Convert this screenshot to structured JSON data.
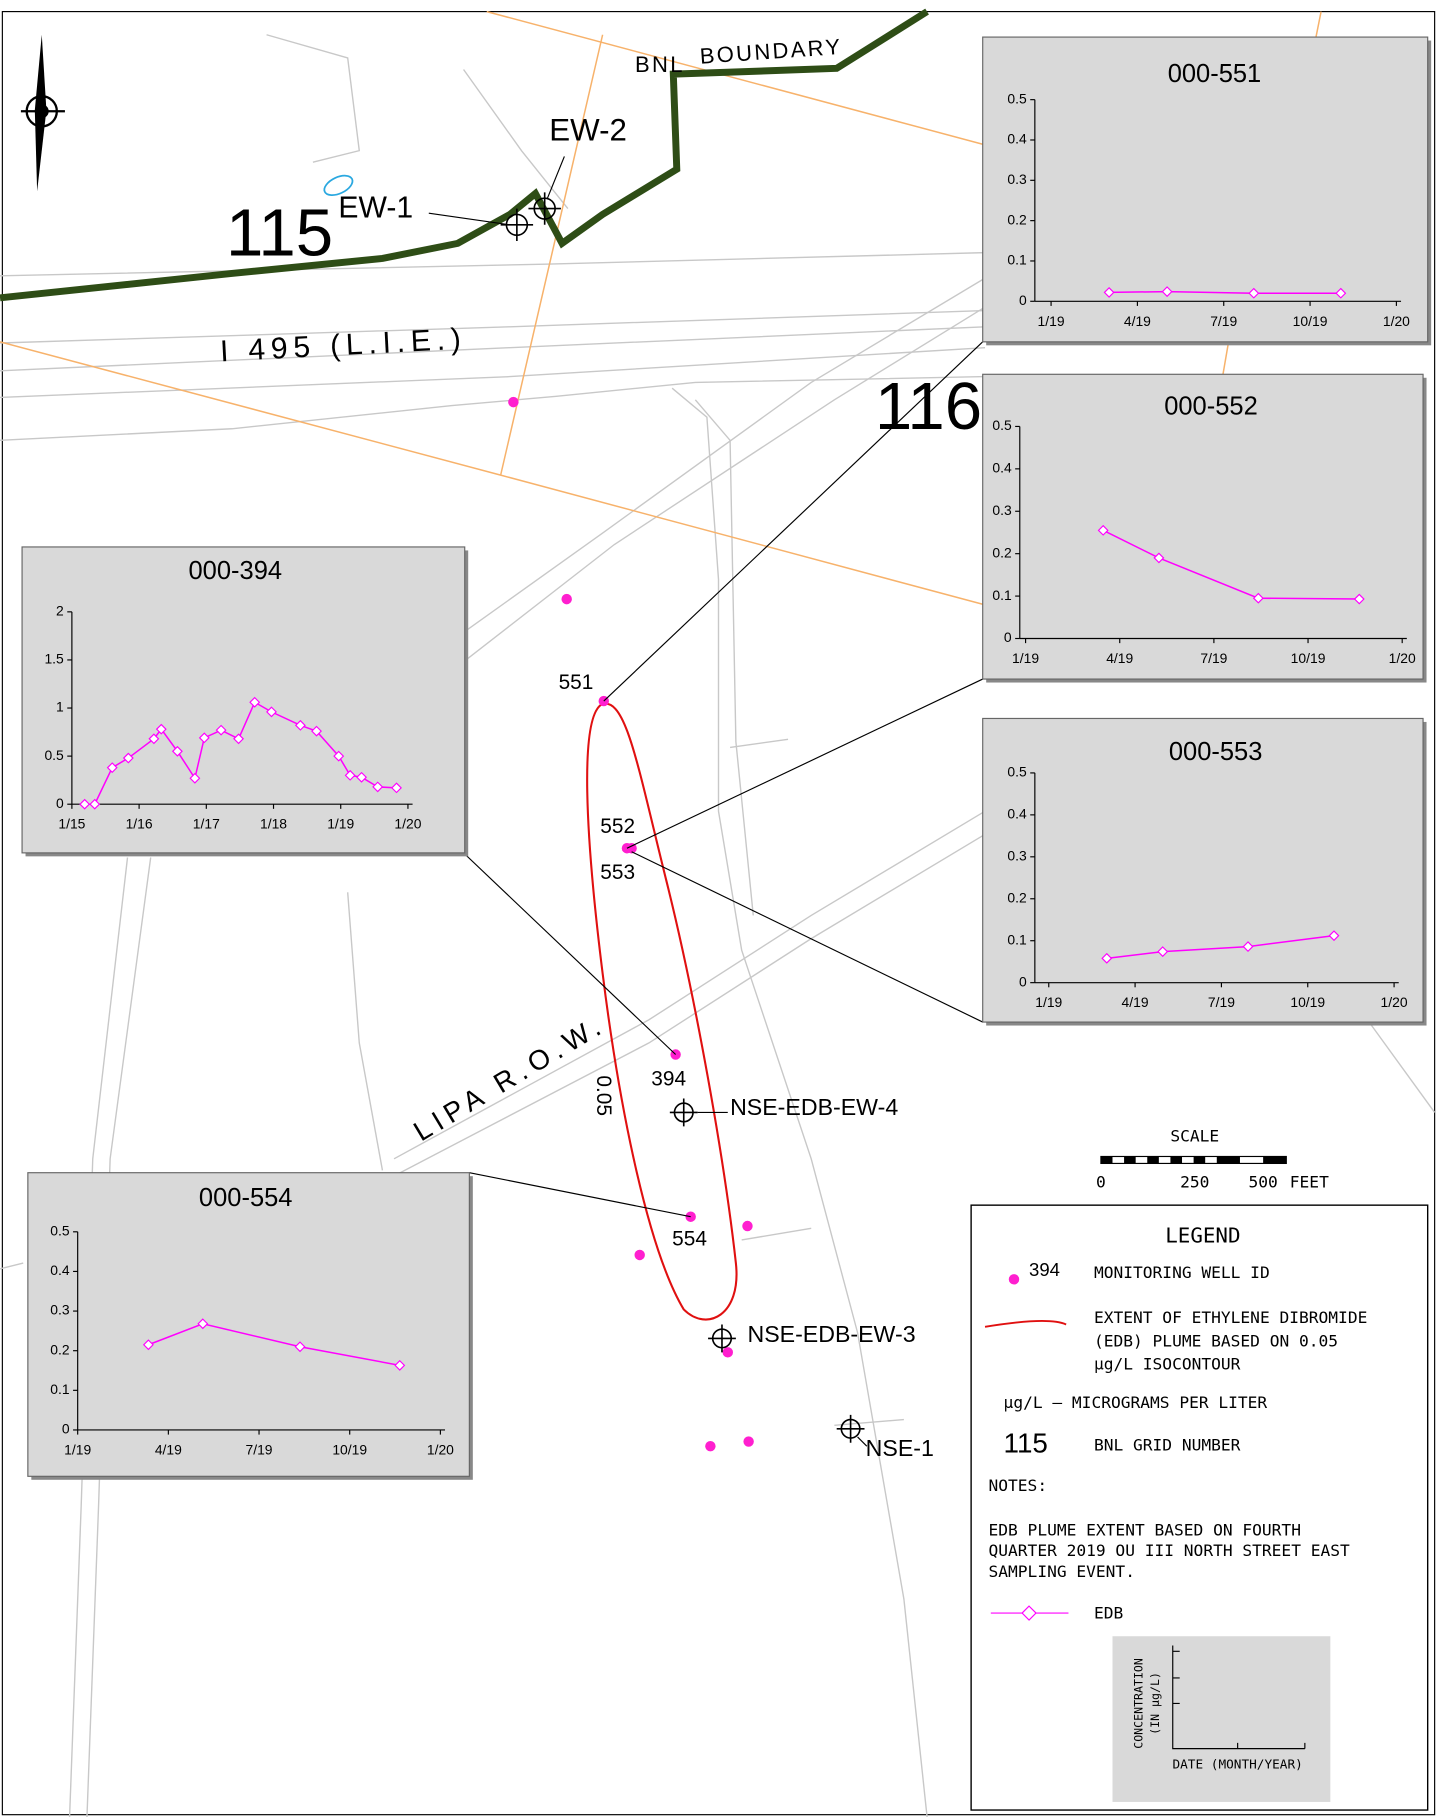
{
  "map": {
    "boundary": [
      "BNL",
      "BOUNDARY"
    ],
    "grid_numbers": [
      "115",
      "116"
    ],
    "roads": [
      "I 495 (L.I.E.)",
      "LIPA R.O.W."
    ],
    "contour_label": "0.05",
    "extraction_wells": [
      "EW-1",
      "EW-2",
      "NSE-EDB-EW-4",
      "NSE-EDB-EW-3",
      "NSE-1"
    ],
    "monitoring_wells": [
      "551",
      "552",
      "553",
      "394",
      "554"
    ],
    "scale": {
      "title": "SCALE",
      "labels": [
        "0",
        "250",
        "500"
      ],
      "unit": "FEET"
    }
  },
  "legend": {
    "title": "LEGEND",
    "well_sample": "394",
    "well_text": "MONITORING WELL ID",
    "plume_text": [
      "EXTENT OF ETHYLENE DIBROMIDE",
      "(EDB) PLUME BASED ON 0.05",
      "µg/L ISOCONTOUR"
    ],
    "unit_text": "µg/L — MICROGRAMS PER LITER",
    "grid_sample": "115",
    "grid_text": "BNL GRID NUMBER",
    "notes_title": "NOTES:",
    "notes": [
      "EDB PLUME EXTENT BASED ON FOURTH",
      "QUARTER 2019 OU III NORTH STREET EAST",
      "SAMPLING EVENT."
    ],
    "series_text": "EDB",
    "axis_y": [
      "CONCENTRATION",
      "(IN µg/L)"
    ],
    "axis_x": "DATE (MONTH/YEAR)"
  },
  "chart_data": [
    {
      "type": "line",
      "title": "000-551",
      "color": "#ff00ff",
      "x": [
        2019.168,
        2019.336,
        2019.587,
        2019.839
      ],
      "values": [
        0.022,
        0.024,
        0.02,
        0.02
      ],
      "xlim": [
        2019,
        2020
      ],
      "xticks": [
        {
          "value": 2019,
          "label": "1/19"
        },
        {
          "value": 2019.25,
          "label": "4/19"
        },
        {
          "value": 2019.5,
          "label": "7/19"
        },
        {
          "value": 2019.75,
          "label": "10/19"
        },
        {
          "value": 2020,
          "label": "1/20"
        }
      ],
      "ylim": [
        0,
        0.5
      ],
      "yticks": [
        0,
        0.1,
        0.2,
        0.3,
        0.4,
        0.5
      ]
    },
    {
      "type": "line",
      "title": "000-552",
      "color": "#ff00ff",
      "x": [
        2019.206,
        2019.354,
        2019.618,
        2019.886
      ],
      "values": [
        0.255,
        0.19,
        0.095,
        0.093
      ],
      "xlim": [
        2019,
        2020
      ],
      "xticks": [
        {
          "value": 2019,
          "label": "1/19"
        },
        {
          "value": 2019.25,
          "label": "4/19"
        },
        {
          "value": 2019.5,
          "label": "7/19"
        },
        {
          "value": 2019.75,
          "label": "10/19"
        },
        {
          "value": 2020,
          "label": "1/20"
        }
      ],
      "ylim": [
        0,
        0.5
      ],
      "yticks": [
        0,
        0.1,
        0.2,
        0.3,
        0.4,
        0.5
      ]
    },
    {
      "type": "line",
      "title": "000-553",
      "color": "#ff00ff",
      "x": [
        2019.168,
        2019.33,
        2019.577,
        2019.826
      ],
      "values": [
        0.058,
        0.074,
        0.086,
        0.112
      ],
      "xlim": [
        2019,
        2020
      ],
      "xticks": [
        {
          "value": 2019,
          "label": "1/19"
        },
        {
          "value": 2019.25,
          "label": "4/19"
        },
        {
          "value": 2019.5,
          "label": "7/19"
        },
        {
          "value": 2019.75,
          "label": "10/19"
        },
        {
          "value": 2020,
          "label": "1/20"
        }
      ],
      "ylim": [
        0,
        0.5
      ],
      "yticks": [
        0,
        0.1,
        0.2,
        0.3,
        0.4,
        0.5
      ]
    },
    {
      "type": "line",
      "title": "000-394",
      "color": "#ff00ff",
      "x": [
        2015.19,
        2015.34,
        2015.6,
        2015.84,
        2016.22,
        2016.33,
        2016.57,
        2016.83,
        2016.97,
        2017.22,
        2017.48,
        2017.72,
        2017.97,
        2018.4,
        2018.64,
        2018.97,
        2019.14,
        2019.31,
        2019.55,
        2019.83
      ],
      "values": [
        0,
        0,
        0.38,
        0.48,
        0.68,
        0.78,
        0.55,
        0.27,
        0.69,
        0.77,
        0.68,
        1.06,
        0.96,
        0.82,
        0.76,
        0.5,
        0.3,
        0.28,
        0.18,
        0.17
      ],
      "xlim": [
        2015,
        2020
      ],
      "xticks": [
        {
          "value": 2015,
          "label": "1/15"
        },
        {
          "value": 2016,
          "label": "1/16"
        },
        {
          "value": 2017,
          "label": "1/17"
        },
        {
          "value": 2018,
          "label": "1/18"
        },
        {
          "value": 2019,
          "label": "1/19"
        },
        {
          "value": 2020,
          "label": "1/20"
        }
      ],
      "ylim": [
        0,
        2
      ],
      "yticks": [
        0,
        0.5,
        1,
        1.5,
        2
      ]
    },
    {
      "type": "line",
      "title": "000-554",
      "color": "#ff00ff",
      "x": [
        2019.195,
        2019.345,
        2019.613,
        2019.888
      ],
      "values": [
        0.215,
        0.268,
        0.21,
        0.163
      ],
      "xlim": [
        2019,
        2020
      ],
      "xticks": [
        {
          "value": 2019,
          "label": "1/19"
        },
        {
          "value": 2019.25,
          "label": "4/19"
        },
        {
          "value": 2019.5,
          "label": "7/19"
        },
        {
          "value": 2019.75,
          "label": "10/19"
        },
        {
          "value": 2020,
          "label": "1/20"
        }
      ],
      "ylim": [
        0,
        0.5
      ],
      "yticks": [
        0,
        0.1,
        0.2,
        0.3,
        0.4,
        0.5
      ]
    }
  ]
}
